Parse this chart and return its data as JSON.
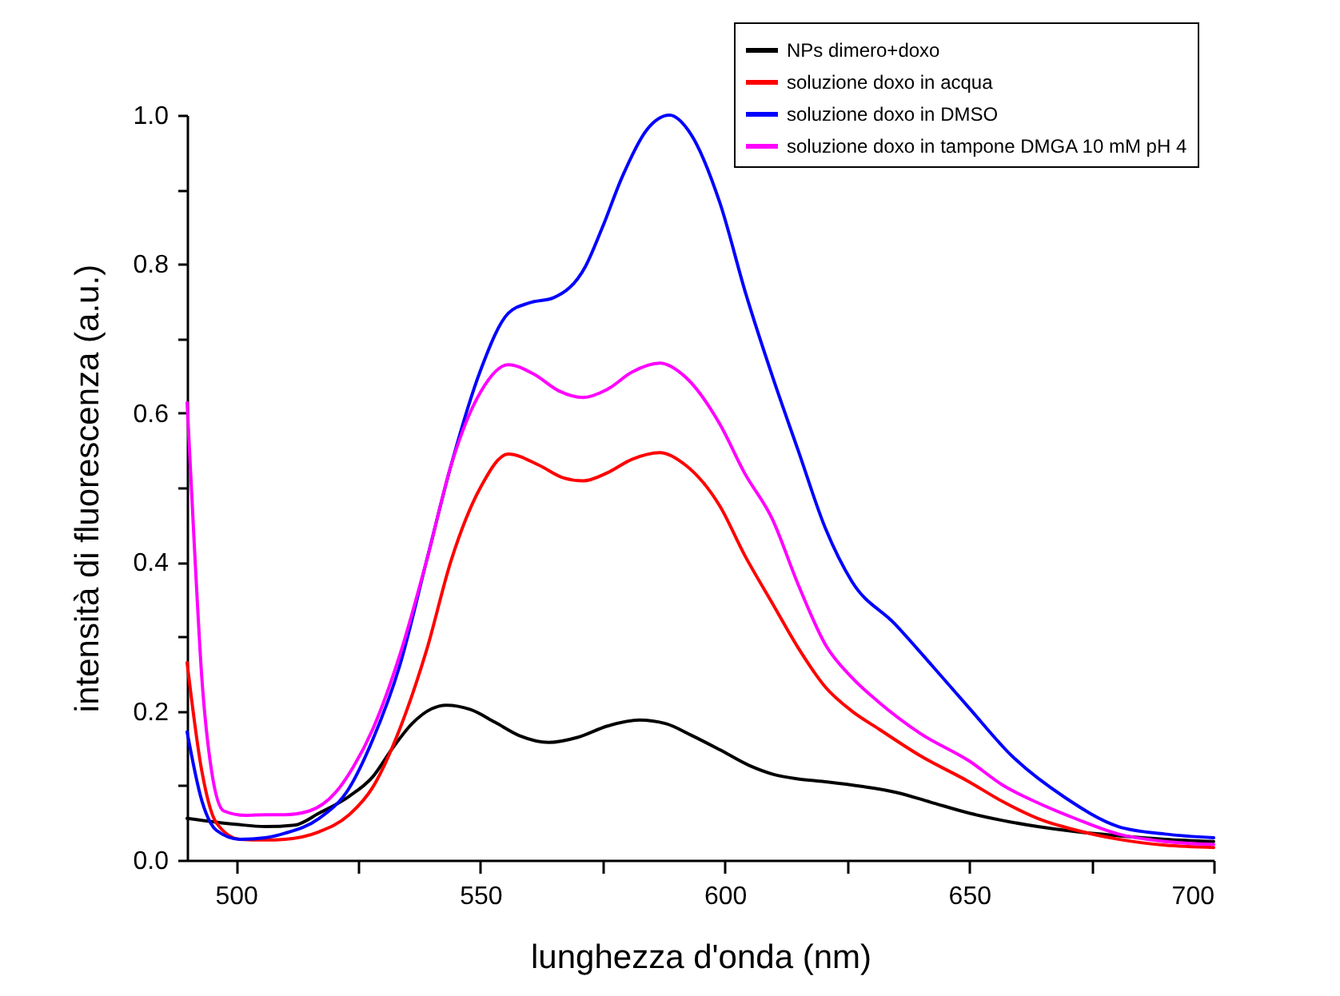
{
  "chart_data": {
    "type": "line",
    "xlabel": "lunghezza d'onda (nm)",
    "ylabel": "intensità di fluorescenza (a.u.)",
    "xlim": [
      490,
      700
    ],
    "ylim": [
      0,
      1.0
    ],
    "xticks": [
      500,
      {
        "value": 525,
        "label": null
      },
      550,
      {
        "value": 575,
        "label": null
      },
      600,
      {
        "value": 625,
        "label": null
      },
      650,
      {
        "value": 675,
        "label": null
      },
      700
    ],
    "yticks": [
      {
        "value": 0,
        "label": "0.0"
      },
      {
        "value": 0.1,
        "label": null
      },
      {
        "value": 0.2,
        "label": "0.2"
      },
      {
        "value": 0.3,
        "label": null
      },
      {
        "value": 0.4,
        "label": "0.4"
      },
      {
        "value": 0.5,
        "label": null
      },
      {
        "value": 0.6,
        "label": "0.6"
      },
      {
        "value": 0.7,
        "label": null
      },
      {
        "value": 0.8,
        "label": "0.8"
      },
      {
        "value": 0.9,
        "label": null
      },
      {
        "value": 1.0,
        "label": "1.0"
      }
    ],
    "grid": false,
    "legend": "top right",
    "series": [
      {
        "name": "NPs dimero+doxo",
        "color": "#000000",
        "x": [
          490,
          500,
          506,
          512,
          517,
          523,
          528,
          532,
          536,
          540,
          543,
          548,
          553,
          558,
          564,
          570,
          576,
          582.5,
          588,
          593,
          599,
          605,
          610,
          615,
          621,
          628,
          635,
          642,
          650,
          657,
          664,
          672,
          680,
          690,
          700
        ],
        "values": [
          0.056,
          0.048,
          0.045,
          0.047,
          0.063,
          0.085,
          0.112,
          0.15,
          0.183,
          0.203,
          0.208,
          0.202,
          0.185,
          0.167,
          0.158,
          0.165,
          0.18,
          0.188,
          0.183,
          0.168,
          0.148,
          0.127,
          0.115,
          0.109,
          0.105,
          0.099,
          0.091,
          0.078,
          0.063,
          0.053,
          0.045,
          0.038,
          0.033,
          0.028,
          0.025
        ]
      },
      {
        "name": "soluzione doxo in acqua",
        "color": "#ff0000",
        "x": [
          490,
          493,
          496,
          500.8,
          506,
          510,
          517,
          523,
          528,
          533.5,
          539,
          544,
          550,
          555.7,
          562,
          567,
          571,
          576,
          581,
          586.7,
          592,
          599,
          604,
          609.7,
          615,
          620.6,
          626,
          631.5,
          640,
          650,
          657,
          664,
          672,
          680.5,
          690,
          700
        ],
        "values": [
          0.265,
          0.12,
          0.05,
          0.028,
          0.027,
          0.028,
          0.038,
          0.06,
          0.098,
          0.176,
          0.282,
          0.402,
          0.5,
          0.545,
          0.53,
          0.513,
          0.509,
          0.52,
          0.538,
          0.547,
          0.53,
          0.475,
          0.41,
          0.345,
          0.285,
          0.232,
          0.2,
          0.176,
          0.14,
          0.105,
          0.078,
          0.056,
          0.04,
          0.028,
          0.02,
          0.017
        ]
      },
      {
        "name": "soluzione doxo in DMSO",
        "color": "#0000ff",
        "x": [
          490,
          493,
          496,
          500.8,
          506,
          510,
          517,
          523,
          528,
          533.5,
          539,
          544,
          550,
          555.7,
          560,
          565,
          571.5,
          575,
          579,
          584,
          588.7,
          593,
          599,
          604.3,
          609.7,
          615,
          620.6,
          626,
          634.8,
          642.4,
          650,
          658.7,
          669.6,
          680.5,
          690,
          700
        ],
        "values": [
          0.172,
          0.08,
          0.04,
          0.028,
          0.03,
          0.036,
          0.056,
          0.095,
          0.162,
          0.261,
          0.402,
          0.53,
          0.657,
          0.734,
          0.748,
          0.755,
          0.797,
          0.85,
          0.917,
          0.98,
          1.0,
          0.975,
          0.882,
          0.76,
          0.65,
          0.55,
          0.445,
          0.374,
          0.317,
          0.261,
          0.204,
          0.14,
          0.084,
          0.045,
          0.035,
          0.03
        ]
      },
      {
        "name": "soluzione doxo in tampone DMGA 10 mM pH 4",
        "color": "#ff00ff",
        "x": [
          490,
          491.5,
          493,
          495,
          497.5,
          502,
          506,
          510,
          515,
          520.4,
          524,
          528,
          533.5,
          539,
          544,
          550,
          555.7,
          561,
          566,
          571,
          576,
          581,
          586.7,
          592,
          599,
          604,
          609.7,
          615,
          620.6,
          626,
          631.5,
          640,
          650,
          657,
          664,
          672,
          680.5,
          690,
          700
        ],
        "values": [
          0.614,
          0.42,
          0.246,
          0.12,
          0.066,
          0.06,
          0.061,
          0.061,
          0.066,
          0.091,
          0.125,
          0.176,
          0.275,
          0.402,
          0.53,
          0.628,
          0.665,
          0.652,
          0.63,
          0.621,
          0.632,
          0.655,
          0.667,
          0.648,
          0.585,
          0.52,
          0.458,
          0.37,
          0.289,
          0.245,
          0.212,
          0.17,
          0.133,
          0.1,
          0.077,
          0.055,
          0.035,
          0.025,
          0.021
        ]
      }
    ]
  }
}
